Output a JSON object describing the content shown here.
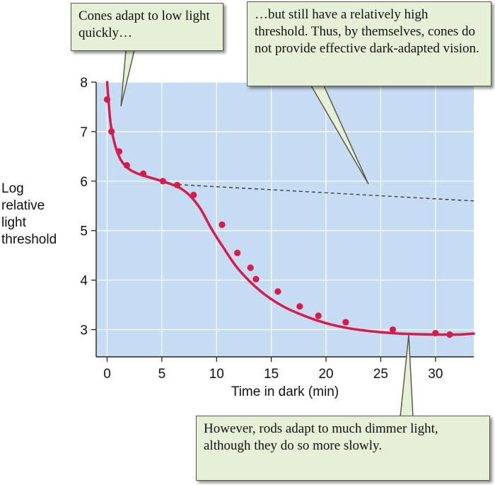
{
  "chart_data": {
    "type": "line",
    "xlabel": "Time in dark (min)",
    "ylabel_lines": [
      "Log",
      "relative",
      "light",
      "threshold"
    ],
    "xlim": [
      -1,
      33.5
    ],
    "ylim": [
      2.45,
      8
    ],
    "x_ticks": [
      0,
      5,
      10,
      15,
      20,
      25,
      30
    ],
    "y_ticks": [
      3,
      4,
      5,
      6,
      7,
      8
    ],
    "grid": true,
    "colors": {
      "plot_bg": "#c6dcf3",
      "grid": "#ffffff",
      "curve": "#d81b4b",
      "dashed": "#333333"
    },
    "series": [
      {
        "style": "solid",
        "x": [
          0,
          0.3,
          0.7,
          1.2,
          1.8,
          2.5,
          3.5,
          5,
          6.5,
          7.5,
          8.5,
          9.5,
          10.5,
          12,
          14,
          16,
          18,
          20,
          22,
          24,
          26,
          28,
          30,
          32,
          33.5
        ],
        "values": [
          8.0,
          7.2,
          6.75,
          6.45,
          6.28,
          6.18,
          6.1,
          6.0,
          5.88,
          5.72,
          5.45,
          5.05,
          4.7,
          4.22,
          3.78,
          3.48,
          3.28,
          3.13,
          3.03,
          2.97,
          2.93,
          2.91,
          2.9,
          2.9,
          2.92
        ]
      },
      {
        "style": "dashed",
        "x": [
          6.5,
          33.5
        ],
        "values": [
          5.93,
          5.6
        ]
      },
      {
        "style": "points",
        "x": [
          0,
          0.4,
          1.1,
          1.8,
          3.3,
          5.1,
          6.4,
          7.9,
          10.5,
          11.9,
          13.1,
          13.6,
          15.6,
          17.6,
          19.3,
          21.8,
          26.1,
          30.0,
          31.3
        ],
        "values": [
          7.65,
          7.0,
          6.6,
          6.32,
          6.15,
          6.0,
          5.92,
          5.72,
          5.12,
          4.55,
          4.25,
          4.02,
          3.77,
          3.47,
          3.28,
          3.15,
          3.0,
          2.93,
          2.9
        ]
      }
    ]
  },
  "annotations": {
    "cones_fast": "Cones adapt to low light quickly…",
    "cones_threshold": "…but still have a relatively high threshold. Thus, by themselves, cones do not provide effective dark-adapted vision.",
    "rods_dimmer": "However, rods adapt to much dimmer light, although they do so more slowly."
  }
}
